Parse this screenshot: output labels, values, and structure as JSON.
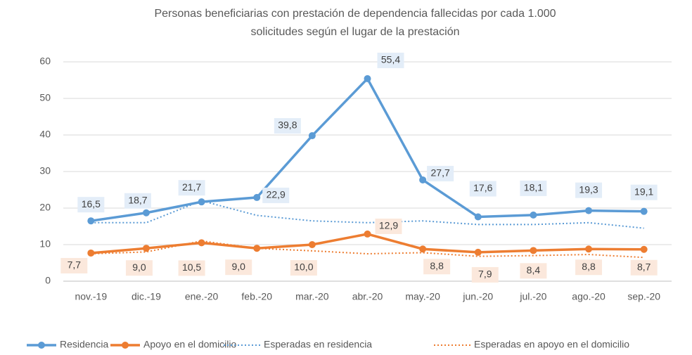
{
  "chart_data": {
    "type": "line",
    "title": [
      "Personas beneficiarias con prestación de dependencia fallecidas por cada 1.000",
      "solicitudes según el lugar de la prestación"
    ],
    "categories": [
      "nov.-19",
      "dic.-19",
      "ene.-20",
      "feb.-20",
      "mar.-20",
      "abr.-20",
      "may.-20",
      "jun.-20",
      "jul.-20",
      "ago.-20",
      "sep.-20"
    ],
    "series": [
      {
        "name": "Residencia",
        "color": "#5b9bd5",
        "style": "solid",
        "markers": true,
        "values": [
          16.5,
          18.7,
          21.7,
          22.9,
          39.8,
          55.4,
          27.7,
          17.6,
          18.1,
          19.3,
          19.1
        ],
        "value_labels": [
          "16,5",
          "18,7",
          "21,7",
          "22,9",
          "39,8",
          "55,4",
          "27,7",
          "17,6",
          "18,1",
          "19,3",
          "19,1"
        ]
      },
      {
        "name": "Apoyo en el domicilio",
        "color": "#ed7d31",
        "style": "solid",
        "markers": true,
        "values": [
          7.7,
          9.0,
          10.5,
          9.0,
          10.0,
          12.9,
          8.8,
          7.9,
          8.4,
          8.8,
          8.7
        ],
        "value_labels": [
          "7,7",
          "9,0",
          "10,5",
          "9,0",
          "10,0",
          "12,9",
          "8,8",
          "7,9",
          "8,4",
          "8,8",
          "8,7"
        ]
      },
      {
        "name": "Esperadas en residencia",
        "color": "#5b9bd5",
        "style": "dotted",
        "markers": false,
        "values": [
          16,
          16,
          22,
          18,
          16.5,
          16,
          16.5,
          15.5,
          15.5,
          16,
          14.5
        ]
      },
      {
        "name": "Esperadas en apoyo en el domicilio",
        "color": "#ed7d31",
        "style": "dotted",
        "markers": false,
        "values": [
          7.5,
          8,
          11,
          9,
          8.3,
          7.5,
          7.8,
          6.8,
          7,
          7.3,
          6.5
        ]
      }
    ],
    "ylim": [
      0,
      60
    ],
    "yticks": [
      0,
      10,
      20,
      30,
      40,
      50,
      60
    ],
    "grid": true,
    "legend": "bottom"
  }
}
